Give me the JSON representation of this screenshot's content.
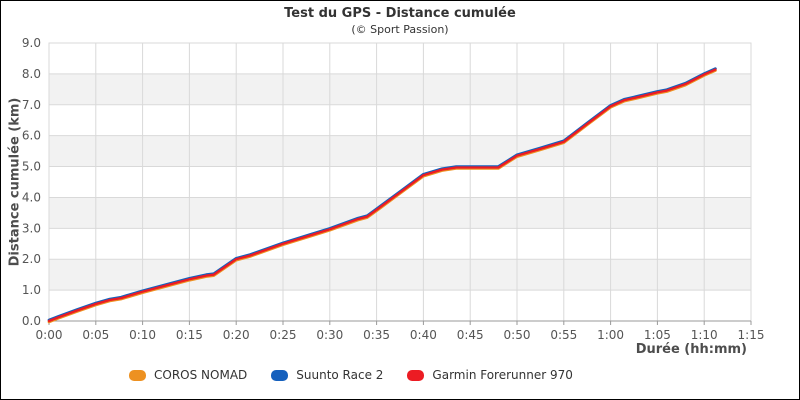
{
  "header": {
    "title": "Test du GPS - Distance cumulée",
    "subtitle": "(© Sport Passion)"
  },
  "chart_data": {
    "type": "line",
    "title": "Test du GPS - Distance cumulée",
    "subtitle": "(© Sport Passion)",
    "xlabel": "Durée (hh:mm)",
    "ylabel": "Distance cumulée (km)",
    "xlim_minutes": [
      0,
      75
    ],
    "ylim": [
      0,
      9
    ],
    "x_ticks": [
      "0:00",
      "0:05",
      "0:10",
      "0:15",
      "0:20",
      "0:25",
      "0:30",
      "0:35",
      "0:40",
      "0:45",
      "0:50",
      "0:55",
      "1:00",
      "1:05",
      "1:10",
      "1:15"
    ],
    "x_tick_minutes": [
      0,
      5,
      10,
      15,
      20,
      25,
      30,
      35,
      40,
      45,
      50,
      55,
      60,
      65,
      70,
      75
    ],
    "y_ticks": [
      "0.0",
      "1.0",
      "2.0",
      "3.0",
      "4.0",
      "5.0",
      "6.0",
      "7.0",
      "8.0",
      "9.0"
    ],
    "y_tick_values": [
      0,
      1,
      2,
      3,
      4,
      5,
      6,
      7,
      8,
      9
    ],
    "grid": true,
    "banded_rows_km": [
      [
        1,
        2
      ],
      [
        3,
        4
      ],
      [
        5,
        6
      ],
      [
        7,
        8
      ]
    ],
    "band_fill": "#f2f2f2",
    "grid_color": "#d9d9d9",
    "axis_color": "#999999",
    "tick_label_color": "#555555",
    "legend_position": "bottom",
    "x_minutes": [
      0,
      1,
      3,
      5,
      6.5,
      7.7,
      10,
      12.5,
      15,
      16.8,
      17.6,
      20,
      21.5,
      25,
      28,
      30,
      33,
      34,
      35,
      37.5,
      40,
      42,
      43.5,
      48,
      50,
      52.5,
      55,
      57.5,
      60,
      61.5,
      62.5,
      65,
      66,
      68,
      70,
      71.2
    ],
    "series": [
      {
        "name": "COROS NOMAD",
        "color": "#ED9121",
        "values": [
          0.0,
          0.12,
          0.34,
          0.55,
          0.68,
          0.74,
          0.95,
          1.15,
          1.35,
          1.47,
          1.5,
          2.0,
          2.12,
          2.5,
          2.78,
          2.97,
          3.3,
          3.38,
          3.6,
          4.16,
          4.72,
          4.9,
          4.97,
          4.97,
          5.35,
          5.57,
          5.8,
          6.38,
          6.95,
          7.15,
          7.22,
          7.4,
          7.46,
          7.67,
          7.98,
          8.14
        ]
      },
      {
        "name": "Suunto Race 2",
        "color": "#1560BD",
        "values": [
          0.0,
          0.12,
          0.34,
          0.55,
          0.68,
          0.74,
          0.95,
          1.15,
          1.35,
          1.47,
          1.5,
          2.0,
          2.12,
          2.5,
          2.78,
          2.97,
          3.3,
          3.38,
          3.6,
          4.16,
          4.72,
          4.9,
          4.97,
          4.97,
          5.35,
          5.57,
          5.8,
          6.38,
          6.95,
          7.15,
          7.22,
          7.4,
          7.46,
          7.67,
          7.98,
          8.14
        ]
      },
      {
        "name": "Garmin Forerunner 970",
        "color": "#EC1C23",
        "values": [
          0.0,
          0.12,
          0.34,
          0.55,
          0.68,
          0.74,
          0.95,
          1.15,
          1.35,
          1.47,
          1.5,
          2.0,
          2.12,
          2.5,
          2.78,
          2.97,
          3.3,
          3.38,
          3.6,
          4.16,
          4.72,
          4.9,
          4.97,
          4.97,
          5.35,
          5.57,
          5.8,
          6.38,
          6.95,
          7.15,
          7.22,
          7.4,
          7.46,
          7.67,
          7.98,
          8.14
        ]
      }
    ]
  }
}
